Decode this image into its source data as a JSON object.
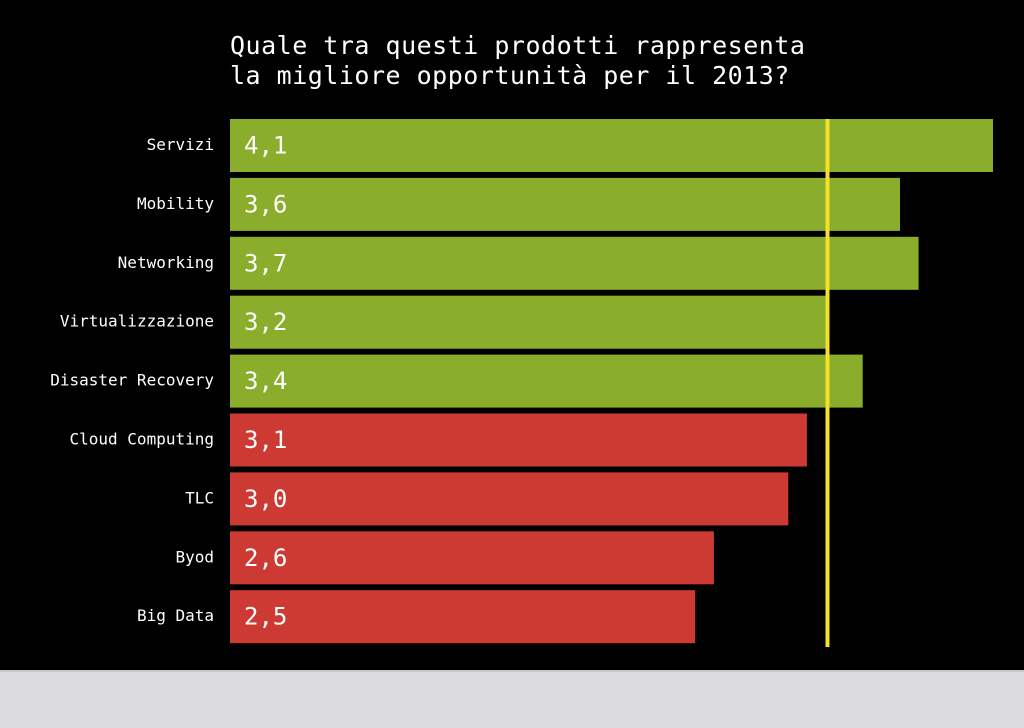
{
  "chart_data": {
    "type": "bar",
    "orientation": "horizontal",
    "title_lines": [
      "Quale tra questi prodotti rappresenta",
      "la migliore opportunità per il 2013?"
    ],
    "categories": [
      "Servizi",
      "Mobility",
      "Networking",
      "Virtualizzazione",
      "Disaster Recovery",
      "Cloud Computing",
      "TLC",
      "Byod",
      "Big Data"
    ],
    "values": [
      4.1,
      3.6,
      3.7,
      3.2,
      3.4,
      3.1,
      3.0,
      2.6,
      2.5
    ],
    "value_labels": [
      "4,1",
      "3,6",
      "3,7",
      "3,2",
      "3,4",
      "3,1",
      "3,0",
      "2,6",
      "2,5"
    ],
    "bar_colors": [
      "#8aad2b",
      "#8aad2b",
      "#8aad2b",
      "#8aad2b",
      "#8aad2b",
      "#cc3a33",
      "#cc3a33",
      "#cc3a33",
      "#cc3a33"
    ],
    "reference_line": {
      "value": 3.2,
      "color": "#f5e02a"
    },
    "xlim": [
      0,
      4.1
    ],
    "grid": false,
    "legend": false
  },
  "colors": {
    "background": "#000000",
    "text": "#ffffff",
    "above_reference": "#8aad2b",
    "below_reference": "#cc3a33",
    "reference_line": "#f5e02a",
    "footer_band": "#dcdcde"
  }
}
